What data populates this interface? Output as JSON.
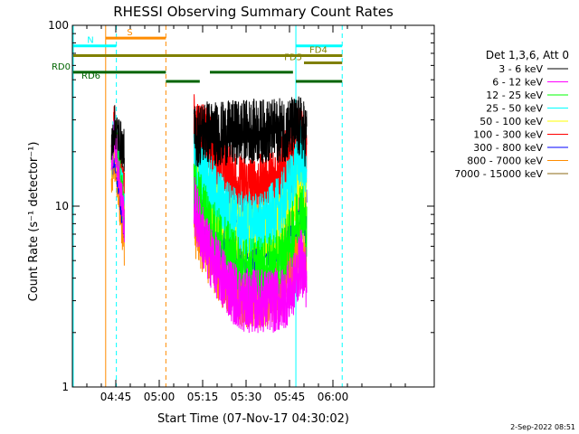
{
  "chart_data": {
    "type": "line",
    "title": "RHESSI Observing Summary Count Rates",
    "xlabel": "Start Time (07-Nov-17 04:30:02)",
    "ylabel": "Count Rate (s⁻¹ detector⁻¹)",
    "x_unit": "minutes of day (UT)",
    "xlim": [
      270,
      395
    ],
    "ylim": [
      1,
      100
    ],
    "y_scale": "log",
    "x_ticks": [
      {
        "x": 285,
        "label": "04:45"
      },
      {
        "x": 300,
        "label": "05:00"
      },
      {
        "x": 315,
        "label": "05:15"
      },
      {
        "x": 330,
        "label": "05:30"
      },
      {
        "x": 345,
        "label": "05:45"
      },
      {
        "x": 360,
        "label": "06:00"
      }
    ],
    "y_ticks": [
      {
        "y": 1,
        "label": "1"
      },
      {
        "y": 10,
        "label": "10"
      },
      {
        "y": 100,
        "label": "100"
      }
    ],
    "legend_header": "Det 1,3,6, Att 0",
    "legend_position": "right",
    "series": [
      {
        "name": "3 - 6 keV",
        "color": "#000000",
        "points": [
          [
            283.5,
            20
          ],
          [
            284.5,
            28
          ],
          [
            288,
            20
          ],
          [
            312,
            24
          ],
          [
            316,
            26
          ],
          [
            320,
            25
          ],
          [
            330,
            26
          ],
          [
            340,
            26
          ],
          [
            346,
            27
          ],
          [
            349,
            27
          ],
          [
            351,
            24
          ]
        ]
      },
      {
        "name": "6 - 12 keV",
        "color": "#ff00ff",
        "points": [
          [
            283.5,
            18
          ],
          [
            284.5,
            25
          ],
          [
            288,
            8
          ],
          [
            312,
            10
          ],
          [
            316,
            6
          ],
          [
            322,
            4
          ],
          [
            328,
            3
          ],
          [
            336,
            3
          ],
          [
            342,
            3
          ],
          [
            346,
            3.5
          ],
          [
            349,
            5
          ],
          [
            351,
            4
          ]
        ]
      },
      {
        "name": "12 - 25 keV",
        "color": "#00ff00",
        "points": [
          [
            283.5,
            17
          ],
          [
            284.5,
            26
          ],
          [
            288,
            9
          ],
          [
            312,
            12
          ],
          [
            316,
            9
          ],
          [
            322,
            6
          ],
          [
            328,
            4.5
          ],
          [
            336,
            4.5
          ],
          [
            342,
            5
          ],
          [
            346,
            7
          ],
          [
            349,
            10
          ],
          [
            351,
            7
          ]
        ]
      },
      {
        "name": "25 - 50 keV",
        "color": "#00ffff",
        "points": [
          [
            283.5,
            18
          ],
          [
            284.5,
            27
          ],
          [
            288,
            10
          ],
          [
            312,
            17
          ],
          [
            316,
            14
          ],
          [
            322,
            10
          ],
          [
            328,
            8
          ],
          [
            336,
            8
          ],
          [
            342,
            10
          ],
          [
            346,
            14
          ],
          [
            349,
            20
          ],
          [
            351,
            13
          ]
        ]
      },
      {
        "name": "50 - 100 keV",
        "color": "#ffff00",
        "points": [
          [
            283.5,
            17
          ],
          [
            284.5,
            24
          ],
          [
            288,
            9
          ],
          [
            312,
            14
          ],
          [
            316,
            11
          ],
          [
            322,
            8
          ],
          [
            328,
            7
          ],
          [
            336,
            7
          ],
          [
            342,
            8
          ],
          [
            346,
            11
          ],
          [
            349,
            16
          ],
          [
            351,
            10
          ]
        ]
      },
      {
        "name": "100 - 300 keV",
        "color": "#ff0000",
        "points": [
          [
            283.5,
            19
          ],
          [
            284.5,
            30
          ],
          [
            288,
            12
          ],
          [
            312,
            28
          ],
          [
            316,
            24
          ],
          [
            322,
            17
          ],
          [
            328,
            13
          ],
          [
            336,
            13
          ],
          [
            342,
            16
          ],
          [
            346,
            21
          ],
          [
            349,
            24
          ],
          [
            351,
            18
          ]
        ]
      },
      {
        "name": "300 - 800 keV",
        "color": "#0000ff",
        "points": [
          [
            283.5,
            15
          ],
          [
            284.5,
            22
          ],
          [
            288,
            8
          ],
          [
            312,
            12
          ],
          [
            316,
            10
          ],
          [
            322,
            7
          ],
          [
            328,
            6
          ],
          [
            336,
            6
          ],
          [
            342,
            7
          ],
          [
            346,
            9
          ],
          [
            349,
            12
          ],
          [
            351,
            8
          ]
        ]
      },
      {
        "name": "800 - 7000 keV",
        "color": "#ff8c00",
        "points": [
          [
            283.5,
            13
          ],
          [
            284.5,
            18
          ],
          [
            288,
            6
          ],
          [
            312,
            8
          ],
          [
            316,
            6
          ],
          [
            322,
            4
          ],
          [
            328,
            3.2
          ],
          [
            336,
            3.2
          ],
          [
            342,
            3.6
          ],
          [
            346,
            4.5
          ],
          [
            349,
            6
          ],
          [
            351,
            5
          ]
        ]
      },
      {
        "name": "7000 - 15000 keV",
        "color": "#8b6914",
        "points": []
      }
    ],
    "vertical_markers": [
      {
        "x": 270.3,
        "color": "#00ffff",
        "style": "solid"
      },
      {
        "x": 281.5,
        "color": "#ff8c00",
        "style": "solid"
      },
      {
        "x": 285.2,
        "color": "#00ffff",
        "style": "dashed"
      },
      {
        "x": 302.3,
        "color": "#ff8c00",
        "style": "dashed"
      },
      {
        "x": 347.2,
        "color": "#00ffff",
        "style": "solid"
      },
      {
        "x": 363.2,
        "color": "#00ffff",
        "style": "dashed"
      }
    ],
    "flag_bars": [
      {
        "label": "S",
        "color": "#ff8c00",
        "segments": [
          [
            281.5,
            302.3
          ]
        ],
        "level": 85
      },
      {
        "label": "N",
        "color": "#00ffff",
        "segments": [
          [
            270.3,
            285.2
          ]
        ],
        "level": 77
      },
      {
        "label": "",
        "color": "#00ffff",
        "segments": [
          [
            347.2,
            363.2
          ]
        ],
        "level": 77
      },
      {
        "label": "",
        "color": "#808000",
        "segments": [
          [
            270.3,
            363.2
          ]
        ],
        "level": 68
      },
      {
        "label": "FD4",
        "color": "#808000",
        "segments": [
          [
            350,
            363.2
          ]
        ],
        "level": 68
      },
      {
        "label": "FD5",
        "color": "#808000",
        "segments": [
          [
            350,
            363.2
          ]
        ],
        "level": 62
      },
      {
        "label": "RD0",
        "color": "#006400",
        "segments": [
          [
            270.3,
            302.3
          ],
          [
            317.5,
            346.2
          ]
        ],
        "level": 55
      },
      {
        "label": "RD6",
        "color": "#006400",
        "segments": [
          [
            302.3,
            314
          ],
          [
            347.2,
            363.2
          ]
        ],
        "level": 49
      }
    ]
  },
  "footer": {
    "timestamp": "2-Sep-2022 08:51"
  }
}
